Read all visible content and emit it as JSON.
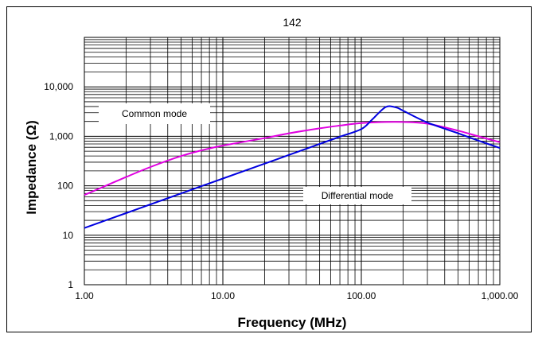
{
  "chart_data": {
    "type": "line",
    "title": "142",
    "xlabel": "Frequency (MHz)",
    "ylabel": "Impedance (Ω)",
    "x_scale": "log",
    "y_scale": "log",
    "xlim": [
      1,
      1000
    ],
    "ylim": [
      1,
      100000
    ],
    "grid": true,
    "x_ticks": [
      "1.00",
      "10.00",
      "100.00",
      "1,000.00"
    ],
    "y_ticks": [
      "1",
      "10",
      "100",
      "1,000",
      "10,000"
    ],
    "annotations": [
      "Common mode",
      "Differential mode"
    ],
    "series": [
      {
        "name": "Common mode",
        "color": "#e000e0",
        "x": [
          1,
          2,
          3,
          5,
          7,
          10,
          20,
          30,
          50,
          70,
          100,
          150,
          200,
          300,
          500,
          700,
          1000
        ],
        "y": [
          65,
          150,
          240,
          400,
          520,
          650,
          920,
          1150,
          1450,
          1650,
          1850,
          1950,
          1950,
          1800,
          1300,
          1000,
          760
        ]
      },
      {
        "name": "Differential mode",
        "color": "#0000e0",
        "x": [
          1,
          2,
          3,
          5,
          7,
          10,
          20,
          30,
          50,
          70,
          100,
          120,
          150,
          180,
          200,
          300,
          500,
          700,
          1000
        ],
        "y": [
          14,
          28,
          42,
          70,
          98,
          140,
          280,
          420,
          700,
          980,
          1400,
          2200,
          3900,
          3800,
          3300,
          1900,
          1150,
          820,
          580
        ]
      }
    ]
  }
}
